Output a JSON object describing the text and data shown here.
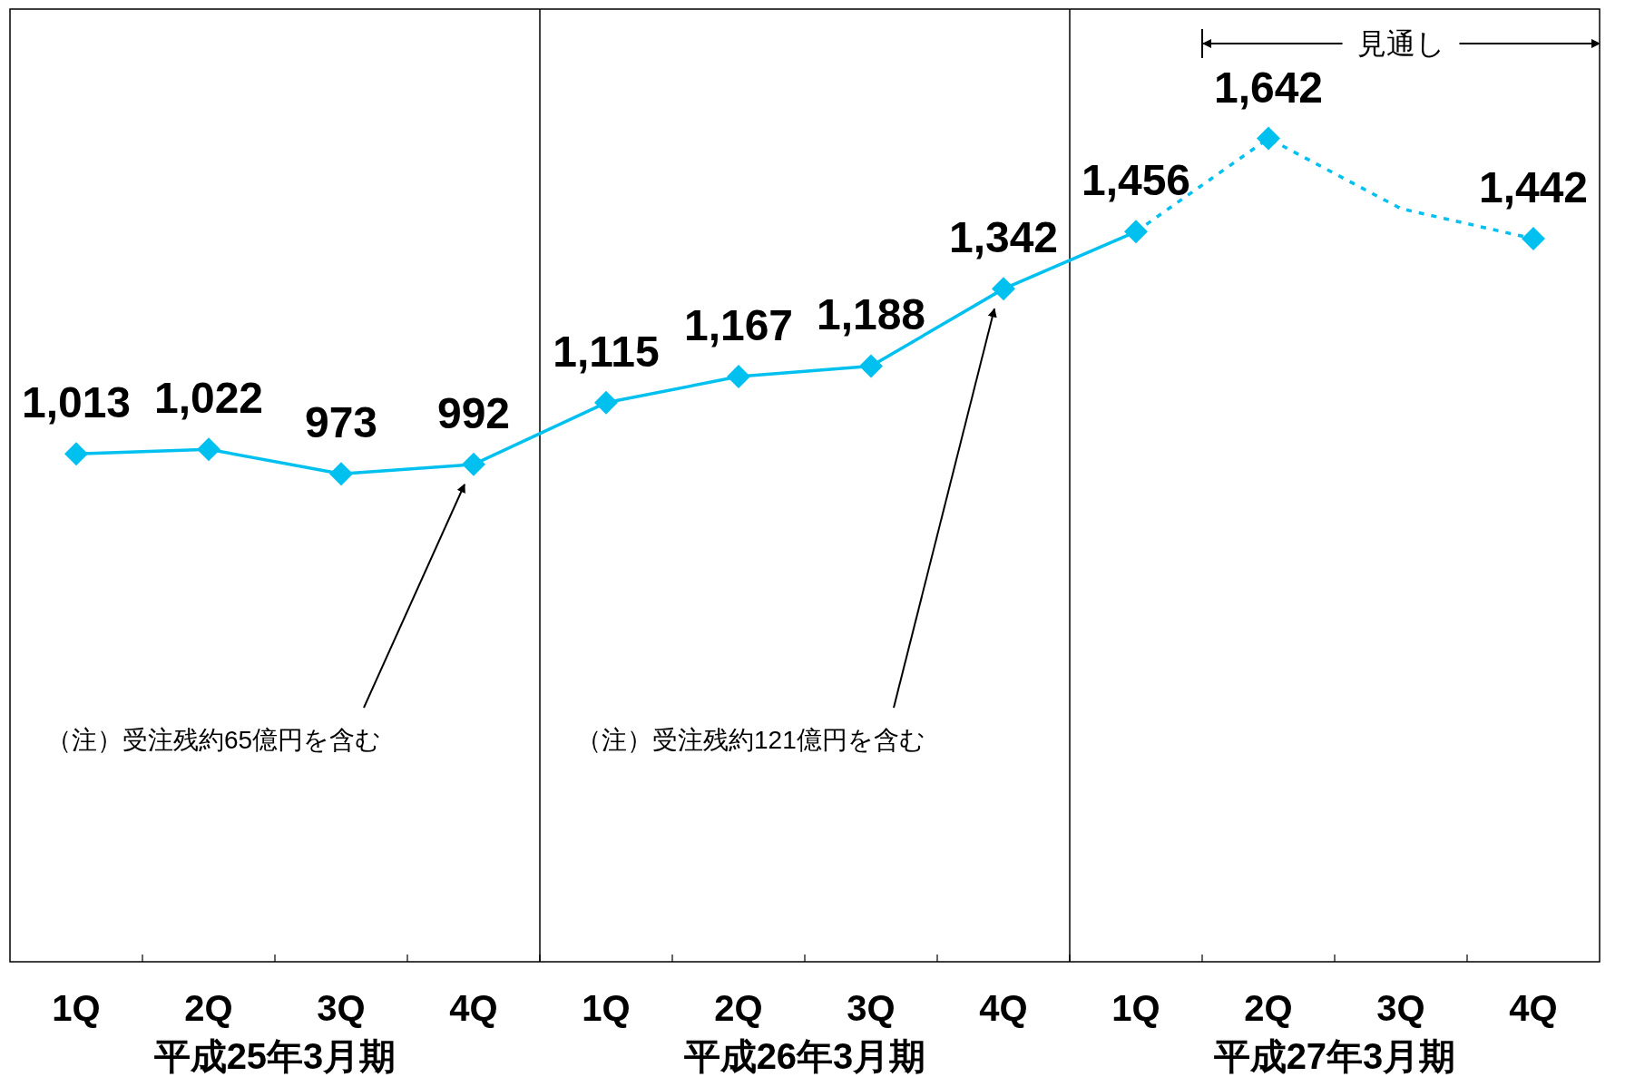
{
  "chart_data": {
    "type": "line",
    "categories": [
      "1Q",
      "2Q",
      "3Q",
      "4Q",
      "1Q",
      "2Q",
      "3Q",
      "4Q",
      "1Q",
      "2Q",
      "3Q",
      "4Q"
    ],
    "ylim": [
      0,
      1900
    ],
    "tick_labels": "x",
    "marker": "diamond",
    "series": [
      {
        "color": "#00c0f0",
        "line_style": "solid",
        "values": [
          1013,
          1022,
          973,
          992,
          1115,
          1167,
          1188,
          1342,
          1456,
          null,
          null,
          null
        ],
        "value_labels": [
          "1,013",
          "1,022",
          "973",
          "992",
          "1,115",
          "1,167",
          "1,188",
          "1,342",
          "1,456",
          null,
          null,
          null
        ]
      },
      {
        "color": "#00c0f0",
        "line_style": "dotted",
        "values": [
          null,
          null,
          null,
          null,
          null,
          null,
          null,
          null,
          1456,
          1642,
          1502,
          1442
        ],
        "value_labels": [
          null,
          null,
          null,
          null,
          null,
          null,
          null,
          null,
          null,
          "1,642",
          null,
          "1,442"
        ]
      }
    ],
    "annotations": [
      "平成25年3月期",
      "平成26年3月期",
      "平成27年3月期",
      "（注）受注残約65億円を含む",
      "（注）受注残約121億円を含む",
      "見通し"
    ]
  }
}
